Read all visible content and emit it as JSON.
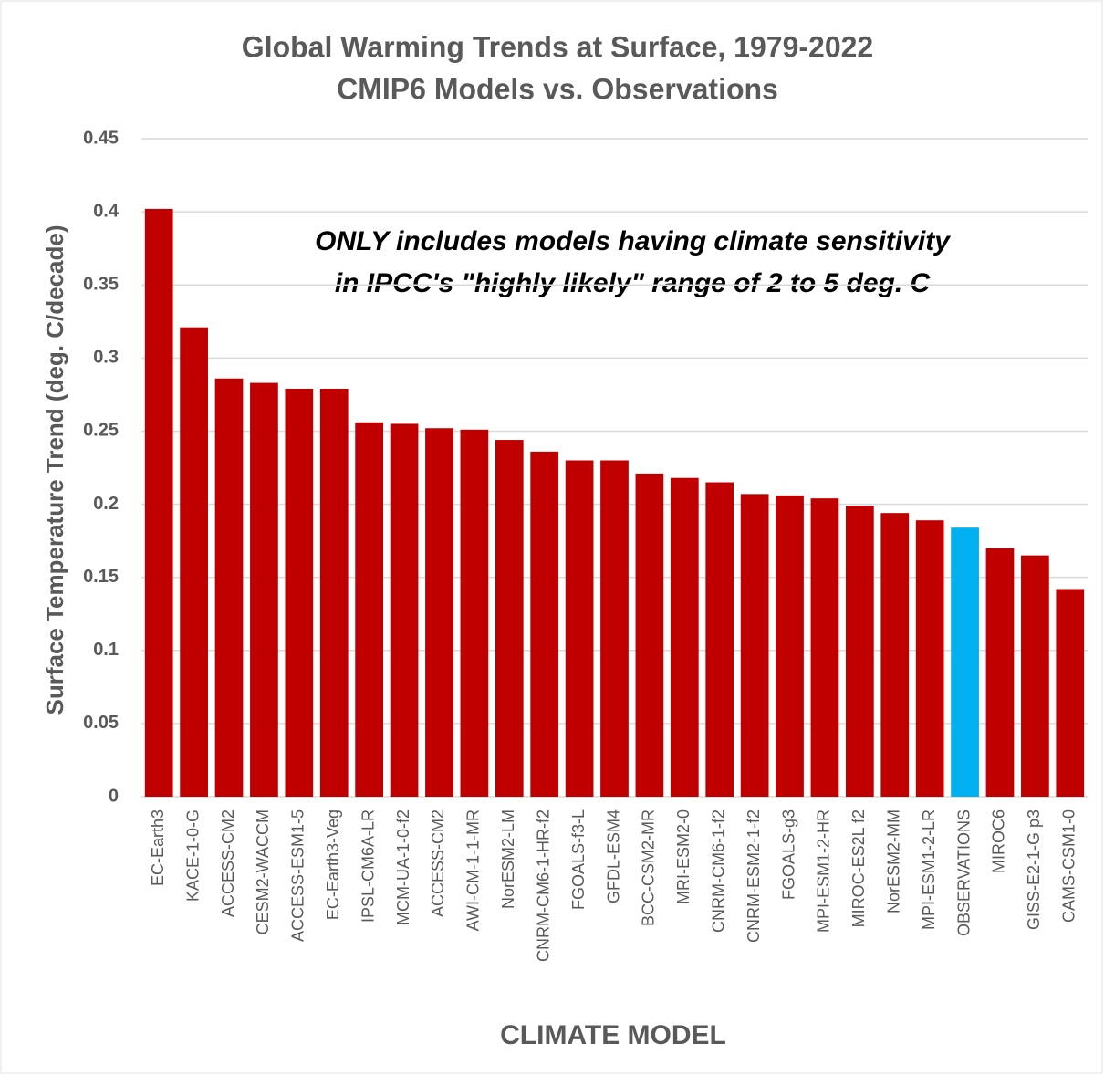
{
  "chart_data": {
    "type": "bar",
    "title": "Global Warming Trends at Surface, 1979-2022",
    "subtitle": "CMIP6 Models vs. Observations",
    "annotation": [
      "ONLY includes models having climate sensitivity",
      "in IPCC's \"highly likely\" range of 2 to 5 deg. C"
    ],
    "x_label": "CLIMATE MODEL",
    "y_label": "Surface Temperature Trend (deg. C/decade)",
    "categories": [
      "EC-Earth3",
      "KACE-1-0-G",
      "ACCESS-CM2",
      "CESM2-WACCM",
      "ACCESS-ESM1-5",
      "EC-Earth3-Veg",
      "IPSL-CM6A-LR",
      "MCM-UA-1-0-f2",
      "ACCESS-CM2",
      "AWI-CM-1-1-MR",
      "NorESM2-LM",
      "CNRM-CM6-1-HR-f2",
      "FGOALS-f3-L",
      "GFDL-ESM4",
      "BCC-CSM2-MR",
      "MRI-ESM2-0",
      "CNRM-CM6-1-f2",
      "CNRM-ESM2-1-f2",
      "FGOALS-g3",
      "MPI-ESM1-2-HR",
      "MIROC-ES2L f2",
      "NorESM2-MM",
      "MPI-ESM1-2-LR",
      "OBSERVATIONS",
      "MIROC6",
      "GISS-E2-1-G p3",
      "CAMS-CSM1-0"
    ],
    "values": [
      0.402,
      0.321,
      0.286,
      0.283,
      0.279,
      0.279,
      0.256,
      0.255,
      0.252,
      0.251,
      0.244,
      0.236,
      0.23,
      0.23,
      0.221,
      0.218,
      0.215,
      0.207,
      0.206,
      0.204,
      0.199,
      0.194,
      0.189,
      0.184,
      0.17,
      0.165,
      0.142
    ],
    "colors": [
      "#c00000",
      "#c00000",
      "#c00000",
      "#c00000",
      "#c00000",
      "#c00000",
      "#c00000",
      "#c00000",
      "#c00000",
      "#c00000",
      "#c00000",
      "#c00000",
      "#c00000",
      "#c00000",
      "#c00000",
      "#c00000",
      "#c00000",
      "#c00000",
      "#c00000",
      "#c00000",
      "#c00000",
      "#c00000",
      "#c00000",
      "#00b0f0",
      "#c00000",
      "#c00000",
      "#c00000"
    ],
    "ylim": [
      0,
      0.45
    ],
    "yticks": [
      0,
      0.05,
      0.1,
      0.15,
      0.2,
      0.25,
      0.3,
      0.35,
      0.4,
      0.45
    ],
    "grid": true
  }
}
